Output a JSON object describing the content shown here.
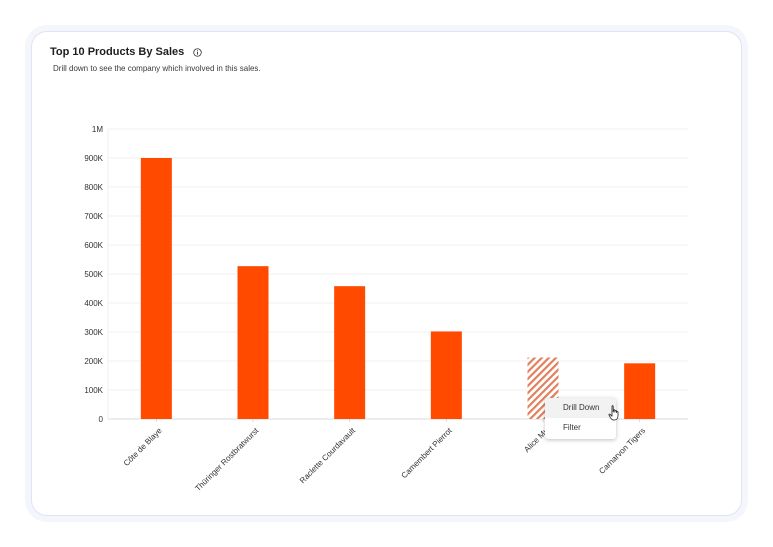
{
  "header": {
    "title": "Top 10 Products By Sales",
    "subtitle": "Drill down to see the company which involved in this sales."
  },
  "icons": {
    "info": "info-icon",
    "cursor": "hand-pointer-icon"
  },
  "context_menu": {
    "items": [
      {
        "label": "Drill Down",
        "hovered": true
      },
      {
        "label": "Filter",
        "hovered": false
      }
    ]
  },
  "colors": {
    "bar": "#ff4a00",
    "bar_highlight_stripe": "#e0805e",
    "grid": "#ebebeb",
    "card_border": "#dfe4f5"
  },
  "chart_data": {
    "type": "bar",
    "title": "Top 10 Products By Sales",
    "categories": [
      "Côte de Blaye",
      "Thüringer Rostbratwurst",
      "Raclette Courdavault",
      "Camembert Pierrot",
      "Alice Mu",
      "Carnarvon Tigers"
    ],
    "values": [
      900000,
      527000,
      458000,
      302000,
      212000,
      192000
    ],
    "highlighted_index": 4,
    "ylim": [
      0,
      1000000
    ],
    "yticks": [
      0,
      100000,
      200000,
      300000,
      400000,
      500000,
      600000,
      700000,
      800000,
      900000,
      1000000
    ],
    "ytick_labels": [
      "0",
      "100K",
      "200K",
      "300K",
      "400K",
      "500K",
      "600K",
      "700K",
      "800K",
      "900K",
      "1M"
    ],
    "xlabel": "",
    "ylabel": "",
    "grid": true
  }
}
